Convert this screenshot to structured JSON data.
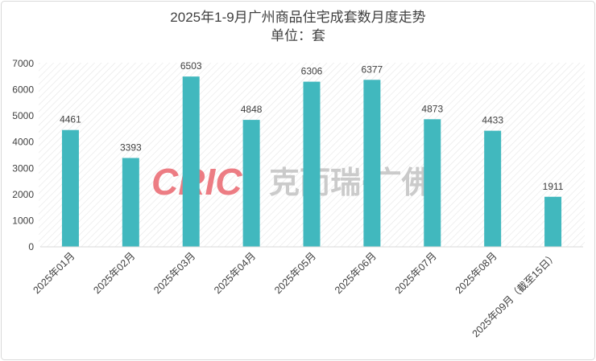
{
  "chart_data": {
    "type": "bar",
    "title": "2025年1-9月广州商品住宅成套数月度走势",
    "subtitle": "单位：套",
    "xlabel": "",
    "ylabel": "",
    "categories": [
      "2025年01月",
      "2025年02月",
      "2025年03月",
      "2025年04月",
      "2025年05月",
      "2025年06月",
      "2025年07月",
      "2025年08月",
      "2025年09月（截至15日）"
    ],
    "values": [
      4461,
      3393,
      6503,
      4848,
      6306,
      6377,
      4873,
      4433,
      1911
    ],
    "ylim": [
      0,
      7000
    ],
    "yticks": [
      0,
      1000,
      2000,
      3000,
      4000,
      5000,
      6000,
      7000
    ],
    "grid": false,
    "legend": "none",
    "data_labels": true,
    "bar_color": "#41B8BE"
  },
  "watermark": {
    "brand": "CRIC",
    "text": "克而瑞·广佛"
  },
  "colors": {
    "text": "#404040",
    "axis": "#d9d9d9",
    "hatch": "#e6e6e6",
    "border": "#d9d9d9"
  }
}
